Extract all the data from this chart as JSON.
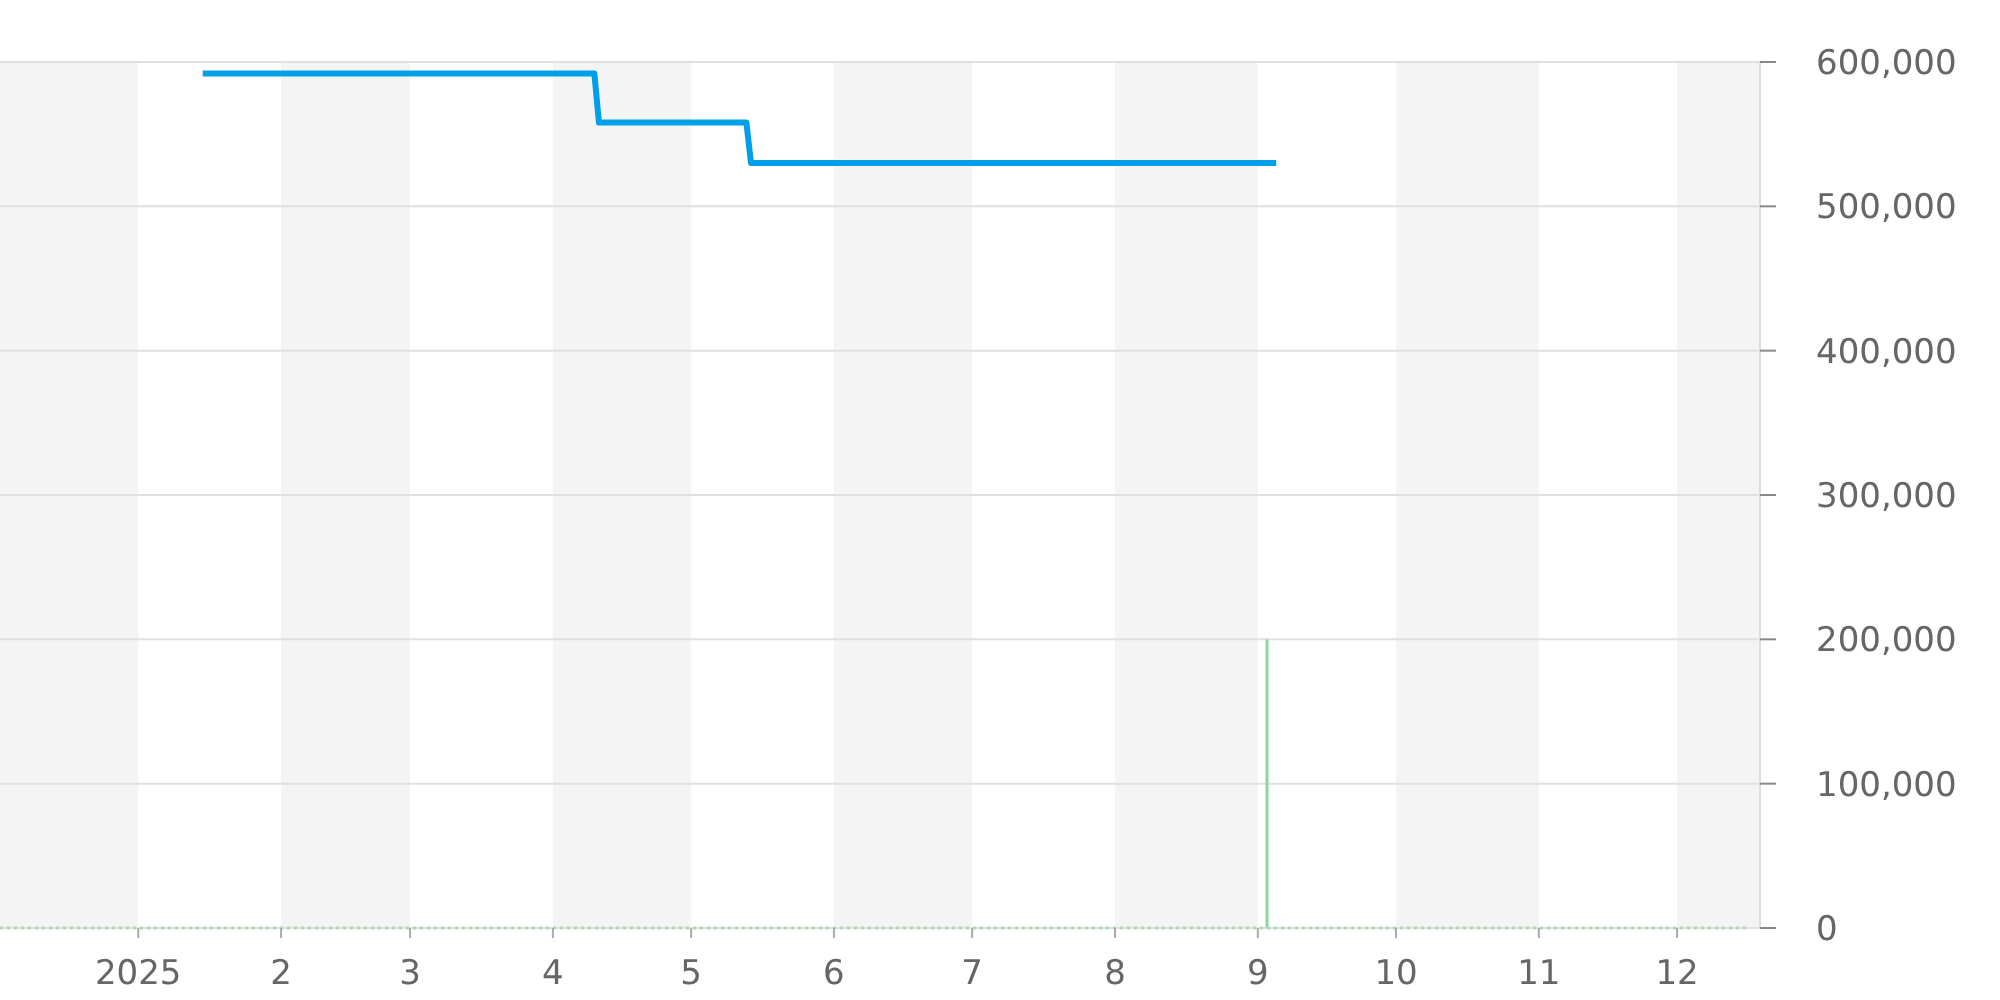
{
  "chart_data": {
    "type": "line",
    "xlim": [
      "2024-12-02",
      "2025-12-19"
    ],
    "xticks": [
      {
        "value": "2025-01",
        "label": "2025"
      },
      {
        "value": "2025-02",
        "label": "2"
      },
      {
        "value": "2025-03",
        "label": "3"
      },
      {
        "value": "2025-04",
        "label": "4"
      },
      {
        "value": "2025-05",
        "label": "5"
      },
      {
        "value": "2025-06",
        "label": "6"
      },
      {
        "value": "2025-07",
        "label": "7"
      },
      {
        "value": "2025-08",
        "label": "8"
      },
      {
        "value": "2025-09",
        "label": "9"
      },
      {
        "value": "2025-10",
        "label": "10"
      },
      {
        "value": "2025-11",
        "label": "11"
      },
      {
        "value": "2025-12",
        "label": "12"
      }
    ],
    "ylim": [
      0,
      600000
    ],
    "yticks": [
      {
        "value": 0,
        "label": "0"
      },
      {
        "value": 100000,
        "label": "100,000"
      },
      {
        "value": 200000,
        "label": "200,000"
      },
      {
        "value": 300000,
        "label": "300,000"
      },
      {
        "value": 400000,
        "label": "400,000"
      },
      {
        "value": 500000,
        "label": "500,000"
      },
      {
        "value": 600000,
        "label": "600,000"
      }
    ],
    "grid": "y",
    "bands": [
      {
        "axis": "x",
        "from": "2024-12-02",
        "to": "2025-01",
        "color": "#f4f4f4"
      },
      {
        "axis": "x",
        "from": "2025-02",
        "to": "2025-03",
        "color": "#f4f4f4"
      },
      {
        "axis": "x",
        "from": "2025-04",
        "to": "2025-05",
        "color": "#f4f4f4"
      },
      {
        "axis": "x",
        "from": "2025-06",
        "to": "2025-07",
        "color": "#f4f4f4"
      },
      {
        "axis": "x",
        "from": "2025-08",
        "to": "2025-09",
        "color": "#f4f4f4"
      },
      {
        "axis": "x",
        "from": "2025-10",
        "to": "2025-11",
        "color": "#f4f4f4"
      },
      {
        "axis": "x",
        "from": "2025-12",
        "to": "2025-12-19",
        "color": "#f4f4f4"
      }
    ],
    "series": [
      {
        "color": "#00a0e9",
        "x": [
          "2025-01-15",
          "2025-04-10",
          "2025-04-11",
          "2025-05-13",
          "2025-05-14",
          "2025-09-05"
        ],
        "values": [
          592000,
          592000,
          558000,
          558000,
          530000,
          530000
        ]
      },
      {
        "type": "bar",
        "color": "#8ed6a0",
        "x": [
          "2025-09-03"
        ],
        "values": [
          200000
        ]
      },
      {
        "color": "#a8dcb5",
        "line_style": "dotted",
        "x": [
          "2024-12-02",
          "2025-12-16"
        ],
        "values": [
          0,
          0
        ]
      }
    ]
  }
}
